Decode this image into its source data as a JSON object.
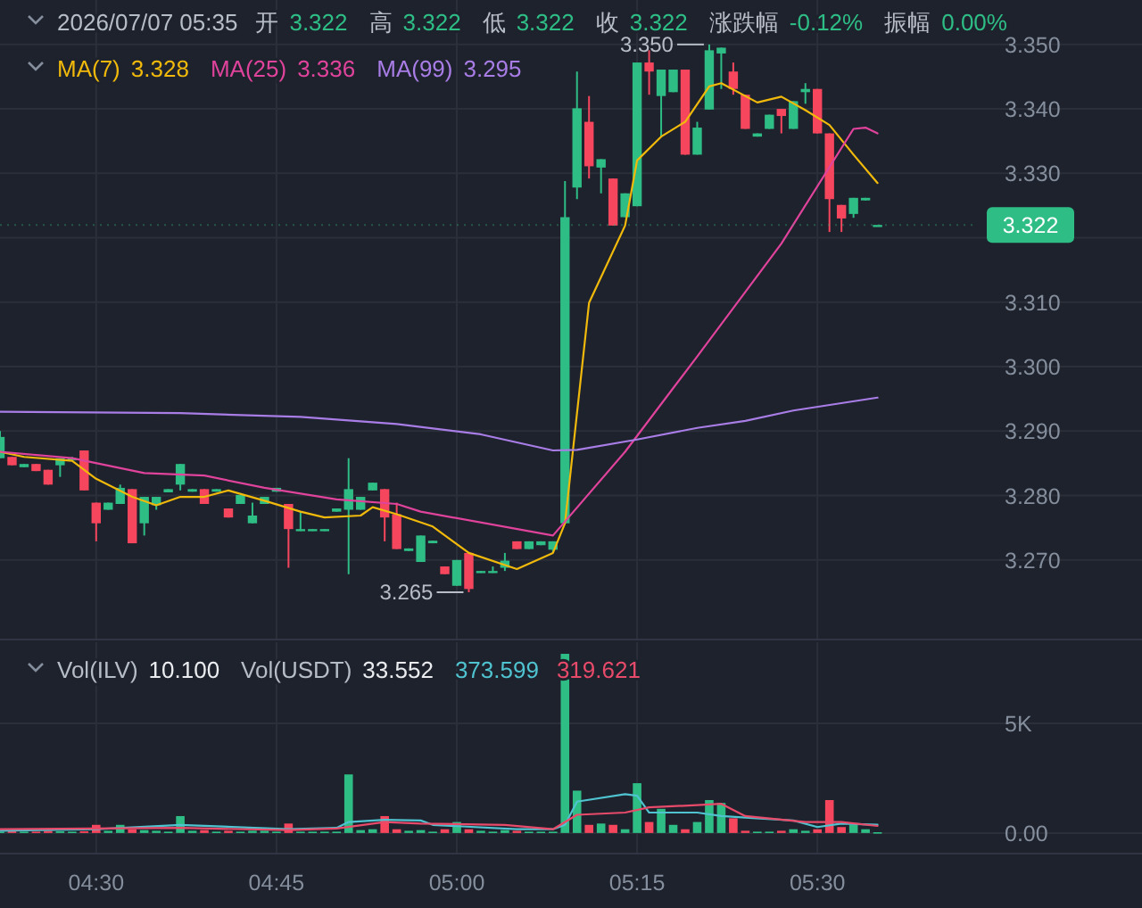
{
  "chart_data": [
    {
      "type": "candlestick",
      "title": "2026/07/07 05:35",
      "annotations": [
        "开",
        "3.322",
        "高",
        "3.322",
        "低",
        "3.322",
        "收",
        "3.322",
        "涨跌幅",
        "-0.12%",
        "振幅",
        "0.00%",
        "3.328",
        "3.336",
        "3.295",
        {
          "text": "3.350",
          "x": "2026-07-07T05:21",
          "y": 3.35
        },
        {
          "text": "3.265",
          "x": "2026-07-07T05:01",
          "y": 3.265
        }
      ],
      "x": [
        "2026-07-07T04:22",
        "2026-07-07T04:23",
        "2026-07-07T04:24",
        "2026-07-07T04:25",
        "2026-07-07T04:26",
        "2026-07-07T04:27",
        "2026-07-07T04:28",
        "2026-07-07T04:29",
        "2026-07-07T04:30",
        "2026-07-07T04:31",
        "2026-07-07T04:32",
        "2026-07-07T04:33",
        "2026-07-07T04:34",
        "2026-07-07T04:35",
        "2026-07-07T04:36",
        "2026-07-07T04:37",
        "2026-07-07T04:38",
        "2026-07-07T04:39",
        "2026-07-07T04:40",
        "2026-07-07T04:41",
        "2026-07-07T04:42",
        "2026-07-07T04:43",
        "2026-07-07T04:44",
        "2026-07-07T04:45",
        "2026-07-07T04:46",
        "2026-07-07T04:47",
        "2026-07-07T04:48",
        "2026-07-07T04:49",
        "2026-07-07T04:50",
        "2026-07-07T04:51",
        "2026-07-07T04:52",
        "2026-07-07T04:53",
        "2026-07-07T04:54",
        "2026-07-07T04:55",
        "2026-07-07T04:56",
        "2026-07-07T04:57",
        "2026-07-07T04:58",
        "2026-07-07T04:59",
        "2026-07-07T05:00",
        "2026-07-07T05:01",
        "2026-07-07T05:02",
        "2026-07-07T05:03",
        "2026-07-07T05:04",
        "2026-07-07T05:05",
        "2026-07-07T05:06",
        "2026-07-07T05:07",
        "2026-07-07T05:08",
        "2026-07-07T05:09",
        "2026-07-07T05:10",
        "2026-07-07T05:11",
        "2026-07-07T05:12",
        "2026-07-07T05:13",
        "2026-07-07T05:14",
        "2026-07-07T05:15",
        "2026-07-07T05:16",
        "2026-07-07T05:17",
        "2026-07-07T05:18",
        "2026-07-07T05:19",
        "2026-07-07T05:20",
        "2026-07-07T05:21",
        "2026-07-07T05:22",
        "2026-07-07T05:23",
        "2026-07-07T05:24",
        "2026-07-07T05:25",
        "2026-07-07T05:26",
        "2026-07-07T05:27",
        "2026-07-07T05:28",
        "2026-07-07T05:29",
        "2026-07-07T05:30",
        "2026-07-07T05:31",
        "2026-07-07T05:32",
        "2026-07-07T05:33",
        "2026-07-07T05:34",
        "2026-07-07T05:35"
      ],
      "ohlc": [
        [
          3.2858,
          3.29,
          3.2858,
          3.2891
        ],
        [
          3.286,
          3.286,
          3.2847,
          3.2847
        ],
        [
          3.2844,
          3.2849,
          3.2844,
          3.2849
        ],
        [
          3.2849,
          3.2849,
          3.2838,
          3.2838
        ],
        [
          3.284,
          3.284,
          3.2817,
          3.2817
        ],
        [
          3.2847,
          3.2858,
          3.2829,
          3.2858
        ],
        [
          3.2858,
          3.286,
          3.2856,
          3.2858
        ],
        [
          3.287,
          3.287,
          3.2808,
          3.2808
        ],
        [
          3.2789,
          3.2789,
          3.2729,
          3.2757
        ],
        [
          3.2778,
          3.2789,
          3.2778,
          3.2789
        ],
        [
          3.2787,
          3.2817,
          3.2787,
          3.2812
        ],
        [
          3.281,
          3.281,
          3.2726,
          3.2726
        ],
        [
          3.2757,
          3.2798,
          3.2738,
          3.2798
        ],
        [
          3.2785,
          3.2798,
          3.2778,
          3.2798
        ],
        [
          3.2805,
          3.281,
          3.2805,
          3.281
        ],
        [
          3.2817,
          3.2849,
          3.2808,
          3.2849
        ],
        [
          3.2806,
          3.281,
          3.2806,
          3.281
        ],
        [
          3.281,
          3.281,
          3.2787,
          3.2787
        ],
        [
          3.2806,
          3.281,
          3.2806,
          3.281
        ],
        [
          3.278,
          3.278,
          3.2766,
          3.2766
        ],
        [
          3.2787,
          3.2801,
          3.2787,
          3.2801
        ],
        [
          3.2757,
          3.2789,
          3.2757,
          3.2769
        ],
        [
          3.2787,
          3.2798,
          3.2787,
          3.2798
        ],
        [
          3.2806,
          3.2812,
          3.2806,
          3.2812
        ],
        [
          3.2787,
          3.2787,
          3.2688,
          3.2748
        ],
        [
          3.2745,
          3.2775,
          3.2745,
          3.2748
        ],
        [
          3.2745,
          3.2748,
          3.2745,
          3.2748
        ],
        [
          3.2745,
          3.2748,
          3.2745,
          3.2748
        ],
        [
          3.2775,
          3.278,
          3.2775,
          3.278
        ],
        [
          3.2778,
          3.2858,
          3.2678,
          3.281
        ],
        [
          3.2778,
          3.2798,
          3.2778,
          3.2798
        ],
        [
          3.2808,
          3.282,
          3.2808,
          3.282
        ],
        [
          3.281,
          3.281,
          3.2729,
          3.2766
        ],
        [
          3.2771,
          3.2789,
          3.2717,
          3.2717
        ],
        [
          3.2714,
          3.2718,
          3.2714,
          3.2718
        ],
        [
          3.2697,
          3.2738,
          3.2697,
          3.2738
        ],
        [
          3.2726,
          3.273,
          3.2726,
          3.273
        ],
        [
          3.269,
          3.269,
          3.2678,
          3.2678
        ],
        [
          3.266,
          3.27,
          3.266,
          3.27
        ],
        [
          3.2711,
          3.2711,
          3.265,
          3.2655
        ],
        [
          3.268,
          3.2683,
          3.268,
          3.2683
        ],
        [
          3.268,
          3.269,
          3.268,
          3.2683
        ],
        [
          3.2688,
          3.2711,
          3.2683,
          3.2699
        ],
        [
          3.2729,
          3.2729,
          3.2717,
          3.2717
        ],
        [
          3.2717,
          3.2729,
          3.2717,
          3.2729
        ],
        [
          3.2723,
          3.2729,
          3.2723,
          3.2729
        ],
        [
          3.2716,
          3.2729,
          3.2711,
          3.2729
        ],
        [
          3.2757,
          3.3288,
          3.2757,
          3.3232
        ],
        [
          3.3278,
          3.3458,
          3.326,
          3.3401
        ],
        [
          3.338,
          3.342,
          3.3292,
          3.3311
        ],
        [
          3.3309,
          3.3322,
          3.3269,
          3.3322
        ],
        [
          3.3292,
          3.3292,
          3.3219,
          3.3219
        ],
        [
          3.3232,
          3.3269,
          3.3232,
          3.3269
        ],
        [
          3.3249,
          3.3472,
          3.3249,
          3.3472
        ],
        [
          3.3472,
          3.3491,
          3.3422,
          3.3458
        ],
        [
          3.342,
          3.3461,
          3.3357,
          3.3461
        ],
        [
          3.3426,
          3.3461,
          3.3426,
          3.3461
        ],
        [
          3.3461,
          3.3461,
          3.3329,
          3.3329
        ],
        [
          3.3329,
          3.338,
          3.3329,
          3.3371
        ],
        [
          3.3399,
          3.35,
          3.3399,
          3.3491
        ],
        [
          3.3486,
          3.3495,
          3.3431,
          3.3495
        ],
        [
          3.3458,
          3.3472,
          3.3422,
          3.3431
        ],
        [
          3.3422,
          3.3422,
          3.3369,
          3.3369
        ],
        [
          3.3357,
          3.3362,
          3.3357,
          3.3362
        ],
        [
          3.3369,
          3.3391,
          3.3369,
          3.3391
        ],
        [
          3.34,
          3.34,
          3.3362,
          3.3389
        ],
        [
          3.3369,
          3.3412,
          3.3369,
          3.3412
        ],
        [
          3.3426,
          3.344,
          3.3408,
          3.3431
        ],
        [
          3.3431,
          3.3431,
          3.3362,
          3.3362
        ],
        [
          3.3362,
          3.3362,
          3.3209,
          3.326
        ],
        [
          3.3251,
          3.3251,
          3.3209,
          3.323
        ],
        [
          3.3237,
          3.3262,
          3.3231,
          3.3262
        ],
        [
          3.3258,
          3.3262,
          3.3258,
          3.3262
        ],
        [
          3.322,
          3.322,
          3.322,
          3.322
        ]
      ],
      "series": [
        {
          "name": "MA(7)",
          "type": "line",
          "color": "#f0b90b",
          "x": [
            "2026-07-07T04:22",
            "2026-07-07T04:24",
            "2026-07-07T04:28",
            "2026-07-07T04:30",
            "2026-07-07T04:33",
            "2026-07-07T04:35",
            "2026-07-07T04:37",
            "2026-07-07T04:39",
            "2026-07-07T04:41",
            "2026-07-07T04:44",
            "2026-07-07T04:47",
            "2026-07-07T04:49",
            "2026-07-07T04:52",
            "2026-07-07T04:53",
            "2026-07-07T04:55",
            "2026-07-07T04:58",
            "2026-07-07T05:01",
            "2026-07-07T05:05",
            "2026-07-07T05:08",
            "2026-07-07T05:09",
            "2026-07-07T05:11",
            "2026-07-07T05:14",
            "2026-07-07T05:15",
            "2026-07-07T05:17",
            "2026-07-07T05:19",
            "2026-07-07T05:21",
            "2026-07-07T05:22",
            "2026-07-07T05:25",
            "2026-07-07T05:27",
            "2026-07-07T05:29",
            "2026-07-07T05:31",
            "2026-07-07T05:33",
            "2026-07-07T05:35"
          ],
          "values": [
            3.2868,
            3.286,
            3.2854,
            3.2826,
            3.2798,
            3.2785,
            3.2798,
            3.2798,
            3.2808,
            3.2792,
            3.2775,
            3.2766,
            3.2769,
            3.2782,
            3.2771,
            3.2752,
            3.2711,
            3.2686,
            3.2711,
            3.2757,
            3.3099,
            3.3219,
            3.332,
            3.3357,
            3.338,
            3.3435,
            3.344,
            3.341,
            3.3419,
            3.3398,
            3.3375,
            3.3329,
            3.3285
          ]
        },
        {
          "name": "MA(25)",
          "type": "line",
          "color": "#e0439b",
          "x": [
            "2026-07-07T04:22",
            "2026-07-07T04:28",
            "2026-07-07T04:34",
            "2026-07-07T04:39",
            "2026-07-07T04:44",
            "2026-07-07T04:50",
            "2026-07-07T04:55",
            "2026-07-07T04:57",
            "2026-07-07T05:08",
            "2026-07-07T05:14",
            "2026-07-07T05:20",
            "2026-07-07T05:27",
            "2026-07-07T05:33",
            "2026-07-07T05:34",
            "2026-07-07T05:35"
          ],
          "values": [
            3.2868,
            3.2858,
            3.2835,
            3.2831,
            3.2812,
            3.2794,
            3.2787,
            3.2775,
            3.2738,
            3.2868,
            3.3016,
            3.3191,
            3.3369,
            3.3371,
            3.3362
          ]
        },
        {
          "name": "MA(99)",
          "type": "line",
          "color": "#a87de6",
          "x": [
            "2026-07-07T04:22",
            "2026-07-07T04:37",
            "2026-07-07T04:47",
            "2026-07-07T04:55",
            "2026-07-07T05:02",
            "2026-07-07T05:08",
            "2026-07-07T05:10",
            "2026-07-07T05:15",
            "2026-07-07T05:20",
            "2026-07-07T05:24",
            "2026-07-07T05:28",
            "2026-07-07T05:35"
          ],
          "values": [
            3.293,
            3.2928,
            3.2922,
            3.2911,
            3.2895,
            3.287,
            3.2871,
            3.2887,
            3.2905,
            3.2916,
            3.2932,
            3.2952
          ]
        }
      ],
      "xlim": [
        "2026-07-07T04:22",
        "2026-07-07T05:57"
      ],
      "xticks": [
        {
          "value": "2026-07-07T04:30",
          "label": null
        },
        {
          "value": "2026-07-07T04:45",
          "label": null
        },
        {
          "value": "2026-07-07T05:00",
          "label": null
        },
        {
          "value": "2026-07-07T05:15",
          "label": null
        },
        {
          "value": "2026-07-07T05:30",
          "label": null
        }
      ],
      "ylim": [
        3.2578,
        3.3569
      ],
      "yticks": [
        {
          "value": 3.27,
          "label": "3.270"
        },
        {
          "value": 3.28,
          "label": "3.280"
        },
        {
          "value": 3.29,
          "label": "3.290"
        },
        {
          "value": 3.3,
          "label": "3.300"
        },
        {
          "value": 3.31,
          "label": "3.310"
        },
        {
          "value": 3.32,
          "label": null
        },
        {
          "value": 3.33,
          "label": "3.330"
        },
        {
          "value": 3.34,
          "label": "3.340"
        },
        {
          "value": 3.35,
          "label": "3.350"
        }
      ],
      "ref_lines": [
        {
          "axis": "y",
          "value": 3.322,
          "label": "3.322",
          "color": "#2ebd85",
          "line_style": "dotted"
        }
      ],
      "grid": true,
      "tick_labels": "y"
    },
    {
      "type": "bar",
      "annotations": [
        "Vol(ILV)",
        "10.100",
        "Vol(USDT)",
        "33.552",
        "373.599",
        "319.621"
      ],
      "x": [
        "2026-07-07T04:22",
        "2026-07-07T04:23",
        "2026-07-07T04:24",
        "2026-07-07T04:25",
        "2026-07-07T04:26",
        "2026-07-07T04:27",
        "2026-07-07T04:28",
        "2026-07-07T04:29",
        "2026-07-07T04:30",
        "2026-07-07T04:31",
        "2026-07-07T04:32",
        "2026-07-07T04:33",
        "2026-07-07T04:34",
        "2026-07-07T04:35",
        "2026-07-07T04:36",
        "2026-07-07T04:37",
        "2026-07-07T04:38",
        "2026-07-07T04:39",
        "2026-07-07T04:40",
        "2026-07-07T04:41",
        "2026-07-07T04:42",
        "2026-07-07T04:43",
        "2026-07-07T04:44",
        "2026-07-07T04:45",
        "2026-07-07T04:46",
        "2026-07-07T04:47",
        "2026-07-07T04:48",
        "2026-07-07T04:49",
        "2026-07-07T04:50",
        "2026-07-07T04:51",
        "2026-07-07T04:52",
        "2026-07-07T04:53",
        "2026-07-07T04:54",
        "2026-07-07T04:55",
        "2026-07-07T04:56",
        "2026-07-07T04:57",
        "2026-07-07T04:58",
        "2026-07-07T04:59",
        "2026-07-07T05:00",
        "2026-07-07T05:01",
        "2026-07-07T05:02",
        "2026-07-07T05:03",
        "2026-07-07T05:04",
        "2026-07-07T05:05",
        "2026-07-07T05:06",
        "2026-07-07T05:07",
        "2026-07-07T05:08",
        "2026-07-07T05:09",
        "2026-07-07T05:10",
        "2026-07-07T05:11",
        "2026-07-07T05:12",
        "2026-07-07T05:13",
        "2026-07-07T05:14",
        "2026-07-07T05:15",
        "2026-07-07T05:16",
        "2026-07-07T05:17",
        "2026-07-07T05:18",
        "2026-07-07T05:19",
        "2026-07-07T05:20",
        "2026-07-07T05:21",
        "2026-07-07T05:22",
        "2026-07-07T05:23",
        "2026-07-07T05:24",
        "2026-07-07T05:25",
        "2026-07-07T05:26",
        "2026-07-07T05:27",
        "2026-07-07T05:28",
        "2026-07-07T05:29",
        "2026-07-07T05:30",
        "2026-07-07T05:31",
        "2026-07-07T05:32",
        "2026-07-07T05:33",
        "2026-07-07T05:34",
        "2026-07-07T05:35"
      ],
      "series": [
        {
          "type": "bar",
          "values": [
            60,
            100,
            60,
            60,
            100,
            80,
            60,
            80,
            370,
            100,
            370,
            170,
            130,
            100,
            60,
            770,
            100,
            130,
            60,
            100,
            60,
            100,
            100,
            60,
            430,
            60,
            60,
            60,
            60,
            2670,
            130,
            170,
            770,
            170,
            100,
            130,
            60,
            170,
            500,
            170,
            100,
            60,
            130,
            100,
            60,
            60,
            60,
            8170,
            1930,
            370,
            430,
            370,
            170,
            2270,
            500,
            1100,
            370,
            170,
            500,
            1500,
            1370,
            670,
            100,
            60,
            60,
            100,
            170,
            100,
            170,
            1500,
            270,
            370,
            170,
            34
          ],
          "colors": [
            "#2ebd85",
            "#f6465d",
            "#2ebd85",
            "#f6465d",
            "#f6465d",
            "#2ebd85",
            "#2ebd85",
            "#f6465d",
            "#f6465d",
            "#2ebd85",
            "#2ebd85",
            "#f6465d",
            "#2ebd85",
            "#2ebd85",
            "#2ebd85",
            "#2ebd85",
            "#2ebd85",
            "#f6465d",
            "#2ebd85",
            "#f6465d",
            "#2ebd85",
            "#2ebd85",
            "#2ebd85",
            "#2ebd85",
            "#f6465d",
            "#2ebd85",
            "#2ebd85",
            "#2ebd85",
            "#2ebd85",
            "#2ebd85",
            "#2ebd85",
            "#2ebd85",
            "#f6465d",
            "#f6465d",
            "#2ebd85",
            "#2ebd85",
            "#2ebd85",
            "#f6465d",
            "#2ebd85",
            "#f6465d",
            "#2ebd85",
            "#2ebd85",
            "#2ebd85",
            "#f6465d",
            "#2ebd85",
            "#2ebd85",
            "#2ebd85",
            "#2ebd85",
            "#2ebd85",
            "#f6465d",
            "#2ebd85",
            "#f6465d",
            "#2ebd85",
            "#2ebd85",
            "#f6465d",
            "#2ebd85",
            "#2ebd85",
            "#f6465d",
            "#2ebd85",
            "#2ebd85",
            "#2ebd85",
            "#f6465d",
            "#f6465d",
            "#2ebd85",
            "#2ebd85",
            "#f6465d",
            "#2ebd85",
            "#2ebd85",
            "#f6465d",
            "#f6465d",
            "#f6465d",
            "#2ebd85",
            "#2ebd85",
            "#2ebd85"
          ]
        },
        {
          "type": "line",
          "color": "#4fc3cf",
          "x": [
            "2026-07-07T04:22",
            "2026-07-07T04:30",
            "2026-07-07T04:37",
            "2026-07-07T04:46",
            "2026-07-07T04:50",
            "2026-07-07T04:51",
            "2026-07-07T04:54",
            "2026-07-07T04:57",
            "2026-07-07T04:58",
            "2026-07-07T05:05",
            "2026-07-07T05:08",
            "2026-07-07T05:09",
            "2026-07-07T05:10",
            "2026-07-07T05:14",
            "2026-07-07T05:15",
            "2026-07-07T05:16",
            "2026-07-07T05:20",
            "2026-07-07T05:22",
            "2026-07-07T05:24",
            "2026-07-07T05:28",
            "2026-07-07T05:30",
            "2026-07-07T05:32",
            "2026-07-07T05:35"
          ],
          "values": [
            100,
            170,
            370,
            170,
            230,
            500,
            600,
            570,
            370,
            170,
            170,
            370,
            1430,
            1770,
            1700,
            930,
            930,
            770,
            700,
            570,
            270,
            430,
            374
          ]
        },
        {
          "type": "line",
          "color": "#e84a6a",
          "x": [
            "2026-07-07T04:22",
            "2026-07-07T04:37",
            "2026-07-07T04:46",
            "2026-07-07T04:50",
            "2026-07-07T04:54",
            "2026-07-07T04:57",
            "2026-07-07T05:04",
            "2026-07-07T05:08",
            "2026-07-07T05:10",
            "2026-07-07T05:14",
            "2026-07-07T05:16",
            "2026-07-07T05:20",
            "2026-07-07T05:22",
            "2026-07-07T05:24",
            "2026-07-07T05:29",
            "2026-07-07T05:32",
            "2026-07-07T05:35"
          ],
          "values": [
            170,
            230,
            130,
            200,
            500,
            430,
            370,
            170,
            830,
            930,
            1170,
            1270,
            1330,
            770,
            500,
            500,
            320
          ]
        }
      ],
      "xlim": [
        "2026-07-07T04:22",
        "2026-07-07T05:57"
      ],
      "xticks": [
        {
          "value": "2026-07-07T04:30",
          "label": "04:30"
        },
        {
          "value": "2026-07-07T04:45",
          "label": "04:45"
        },
        {
          "value": "2026-07-07T05:00",
          "label": "05:00"
        },
        {
          "value": "2026-07-07T05:15",
          "label": "05:15"
        },
        {
          "value": "2026-07-07T05:30",
          "label": "05:30"
        }
      ],
      "ylim": [
        -900,
        8700
      ],
      "yticks": [
        {
          "value": 0,
          "label": "0.00"
        },
        {
          "value": 5000,
          "label": "5K"
        }
      ],
      "grid": true
    }
  ]
}
